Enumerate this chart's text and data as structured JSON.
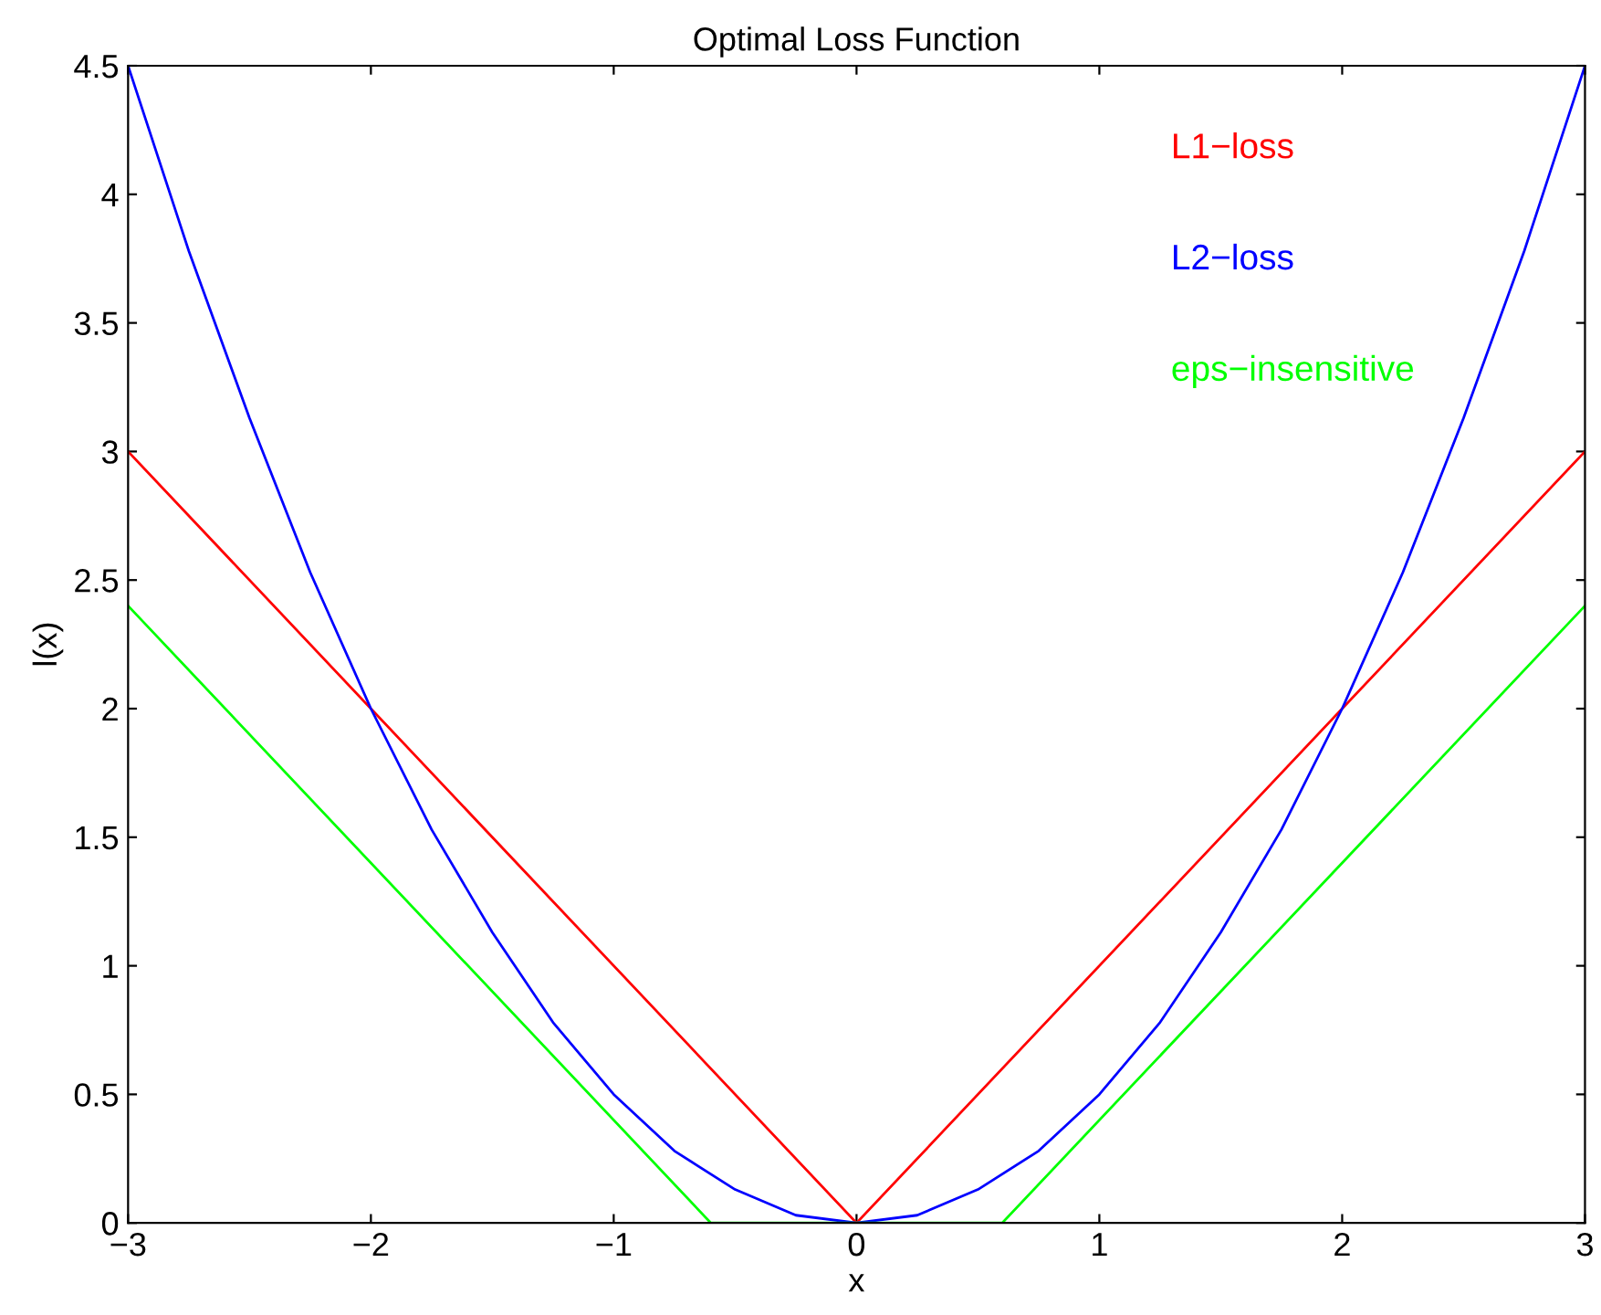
{
  "chart_data": {
    "type": "line",
    "title": "Optimal Loss Function",
    "xlabel": "x",
    "ylabel": "l(x)",
    "series": [
      {
        "name": "L1−loss",
        "color": "#ff0000",
        "x": [
          -3,
          0,
          3
        ],
        "values": [
          3,
          0,
          3
        ]
      },
      {
        "name": "L2−loss",
        "color": "#0000ff",
        "x": [
          -3,
          -2.75,
          -2.5,
          -2.25,
          -2,
          -1.75,
          -1.5,
          -1.25,
          -1,
          -0.75,
          -0.5,
          -0.25,
          0,
          0.25,
          0.5,
          0.75,
          1,
          1.25,
          1.5,
          1.75,
          2,
          2.25,
          2.5,
          2.75,
          3
        ],
        "values": [
          4.5,
          3.78,
          3.13,
          2.53,
          2,
          1.53,
          1.13,
          0.78,
          0.5,
          0.28,
          0.13,
          0.03,
          0,
          0.03,
          0.13,
          0.28,
          0.5,
          0.78,
          1.13,
          1.53,
          2,
          2.53,
          3.13,
          3.78,
          4.5
        ]
      },
      {
        "name": "eps−insensitive",
        "color": "#00ff00",
        "x": [
          -3,
          -0.6,
          0.6,
          3
        ],
        "values": [
          2.4,
          0,
          0,
          2.4
        ]
      }
    ],
    "xlim": [
      -3,
      3
    ],
    "xticks": [
      {
        "value": -3,
        "label": "−3"
      },
      {
        "value": -2,
        "label": "−2"
      },
      {
        "value": -1,
        "label": "−1"
      },
      0,
      1,
      2,
      3
    ],
    "ylim": [
      0,
      4.5
    ],
    "yticks": [
      0,
      0.5,
      1,
      1.5,
      2,
      2.5,
      3,
      3.5,
      4,
      4.5
    ],
    "grid": false,
    "legend": "top right",
    "marker": "none",
    "line_style": "solid"
  }
}
